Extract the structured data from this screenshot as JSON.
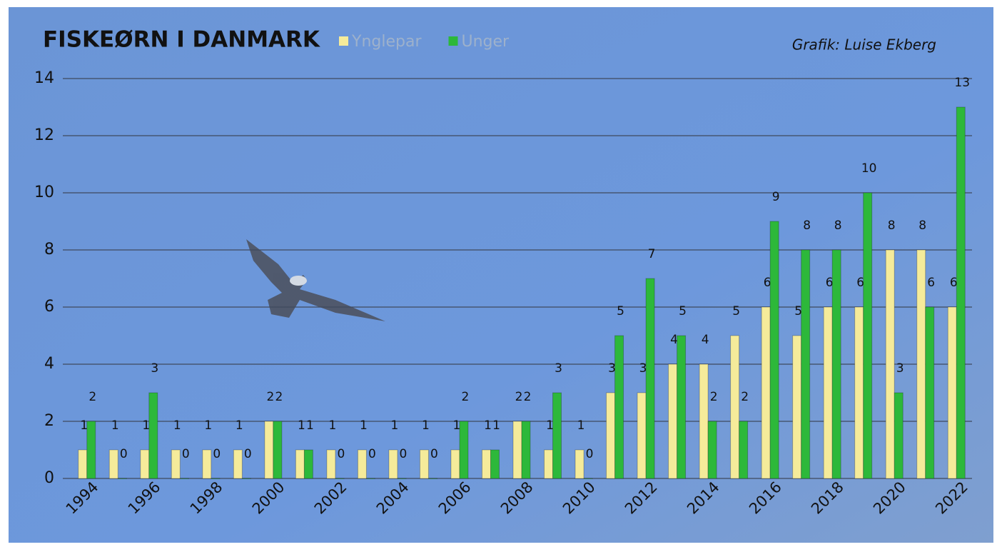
{
  "chart_data": {
    "type": "bar",
    "title": "FISKEØRN I DANMARK",
    "credit": "Grafik: Luise Ekberg",
    "categories": [
      "1994",
      null,
      "1996",
      null,
      "1998",
      null,
      "2000",
      null,
      "2002",
      null,
      "2004",
      null,
      "2006",
      null,
      "2008",
      null,
      "2010",
      null,
      "2012",
      null,
      "2014",
      null,
      "2016",
      null,
      "2018",
      null,
      "2020",
      null,
      "2022"
    ],
    "series": [
      {
        "name": "Ynglepar",
        "color": "#f5eb9a",
        "values": [
          1,
          1,
          1,
          1,
          1,
          1,
          2,
          1,
          1,
          1,
          1,
          1,
          1,
          1,
          2,
          1,
          1,
          3,
          3,
          4,
          4,
          5,
          6,
          5,
          6,
          6,
          8,
          8,
          6
        ]
      },
      {
        "name": "Unger",
        "color": "#2db83a",
        "values": [
          2,
          0,
          3,
          0,
          0,
          0,
          2,
          1,
          0,
          0,
          0,
          0,
          2,
          1,
          2,
          3,
          0,
          5,
          7,
          5,
          2,
          2,
          9,
          8,
          8,
          10,
          3,
          6,
          13
        ]
      }
    ],
    "ylim": [
      0,
      14
    ],
    "yticks": [
      0,
      2,
      4,
      6,
      8,
      10,
      12,
      14
    ],
    "grid": true,
    "data_labels": true
  }
}
